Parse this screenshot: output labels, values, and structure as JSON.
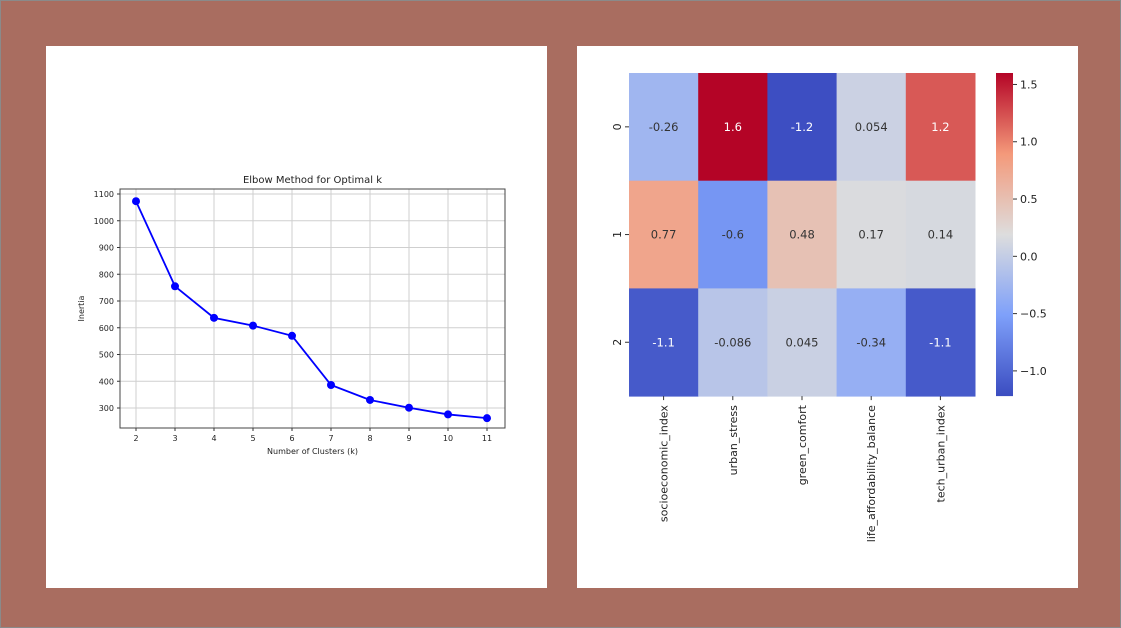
{
  "chart_data": [
    {
      "type": "line",
      "title": "Elbow Method for Optimal k",
      "xlabel": "Number of Clusters (k)",
      "ylabel": "Inertia",
      "x": [
        2,
        3,
        4,
        5,
        6,
        7,
        8,
        9,
        10,
        11
      ],
      "y": [
        1073,
        755,
        637,
        608,
        570,
        386,
        330,
        301,
        276,
        262
      ],
      "xticks": [
        2,
        3,
        4,
        5,
        6,
        7,
        8,
        9,
        10,
        11
      ],
      "yticks": [
        300,
        400,
        500,
        600,
        700,
        800,
        900,
        1000,
        1100
      ],
      "grid": true,
      "marker": "o",
      "color": "#0000ff"
    },
    {
      "type": "heatmap",
      "rows": [
        "0",
        "1",
        "2"
      ],
      "columns": [
        "socioeconomic_index",
        "urban_stress",
        "green_comfort",
        "life_affordability_balance",
        "tech_urban_index"
      ],
      "values": [
        [
          -0.26,
          1.6,
          -1.2,
          0.054,
          1.2
        ],
        [
          0.77,
          -0.6,
          0.48,
          0.17,
          0.14
        ],
        [
          -1.1,
          -0.086,
          0.045,
          -0.34,
          -1.1
        ]
      ],
      "labels": [
        [
          "-0.26",
          "1.6",
          "-1.2",
          "0.054",
          "1.2"
        ],
        [
          "0.77",
          "-0.6",
          "0.48",
          "0.17",
          "0.14"
        ],
        [
          "-1.1",
          "-0.086",
          "0.045",
          "-0.34",
          "-1.1"
        ]
      ],
      "colormap": "coolwarm",
      "vmin": -1.22,
      "vmax": 1.6,
      "colorbar_ticks": [
        "1.5",
        "1.0",
        "0.5",
        "0.0",
        "−0.5",
        "−1.0"
      ],
      "colorbar_tick_values": [
        1.5,
        1.0,
        0.5,
        0.0,
        -0.5,
        -1.0
      ]
    }
  ]
}
